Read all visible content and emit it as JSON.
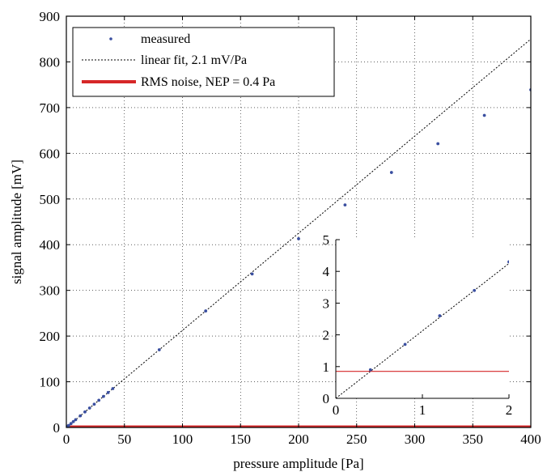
{
  "chart_data": {
    "type": "scatter",
    "xlabel": "pressure amplitude [Pa]",
    "ylabel": "signal amplitude [mV]",
    "xlim": [
      0,
      400
    ],
    "ylim": [
      0,
      900
    ],
    "xticks": [
      0,
      50,
      100,
      150,
      200,
      250,
      300,
      350,
      400
    ],
    "yticks": [
      0,
      100,
      200,
      300,
      400,
      500,
      600,
      700,
      800,
      900
    ],
    "grid": true,
    "legend_position": "top-left",
    "series": [
      {
        "name": "measured",
        "style": "dots",
        "color": "#3a4fa0",
        "x": [
          0.4,
          0.8,
          1.2,
          1.6,
          2,
          4,
          6,
          8,
          12,
          16,
          20,
          24,
          28,
          32,
          36,
          40,
          80,
          120,
          160,
          200,
          240,
          280,
          320,
          360,
          400
        ],
        "y": [
          0.9,
          1.7,
          2.6,
          3.4,
          4.3,
          8.5,
          12.8,
          17,
          25.5,
          34,
          42.5,
          51,
          59.5,
          68,
          76.5,
          85,
          170,
          255,
          336,
          413,
          487,
          558,
          621,
          683,
          739
        ]
      },
      {
        "name": "linear fit, 2.1 mV/Pa",
        "style": "dotted-line",
        "color": "#000000",
        "x": [
          0,
          400
        ],
        "y": [
          0,
          850
        ]
      },
      {
        "name": "RMS noise, NEP = 0.4 Pa",
        "style": "thick-line",
        "color": "#d62728",
        "x": [
          0,
          400
        ],
        "y": [
          0.85,
          0.85
        ]
      }
    ],
    "inset": {
      "xlim": [
        0,
        2
      ],
      "ylim": [
        0,
        5
      ],
      "xticks": [
        0,
        1,
        2
      ],
      "yticks": [
        0,
        1,
        2,
        3,
        4,
        5
      ]
    }
  }
}
